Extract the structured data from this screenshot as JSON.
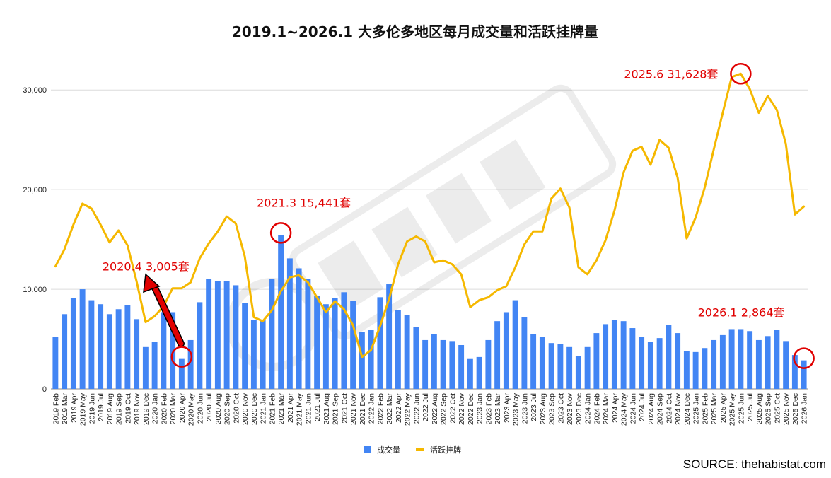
{
  "source": "SOURCE: thehabistat.com",
  "colors": {
    "bars": "#4285f4",
    "line": "#f5b800",
    "annotation": "#e00000",
    "grid": "#dcdcdc"
  },
  "annotations": [
    {
      "text": "2020.4  3,005套",
      "x": "2020 Apr",
      "y": 3005
    },
    {
      "text": "2021.3  15,441套",
      "x": "2021 Mar",
      "y": 15441
    },
    {
      "text": "2025.6  31,628套",
      "x": "2025 Jun",
      "y": 31628
    },
    {
      "text": "2026.1  2,864套",
      "x": "2026 Jan",
      "y": 2864
    }
  ],
  "chart_data": {
    "type": "bar",
    "title": "2019.1~2026.1 大多伦多地区每月成交量和活跃挂牌量",
    "xlabel": "",
    "ylabel": "",
    "ylim": [
      0,
      32500
    ],
    "yticks": [
      0,
      10000,
      20000,
      30000
    ],
    "ytick_labels": [
      "0",
      "10,000",
      "20,000",
      "30,000"
    ],
    "grid": true,
    "legend_position": "bottom",
    "categories": [
      "2019 Feb",
      "2019 Mar",
      "2019 Apr",
      "2019 May",
      "2019 Jun",
      "2019 Jul",
      "2019 Aug",
      "2019 Sep",
      "2019 Oct",
      "2019 Nov",
      "2019 Dec",
      "2020 Jan",
      "2020 Feb",
      "2020 Mar",
      "2020 Apr",
      "2020 May",
      "2020 Jun",
      "2020 Jul",
      "2020 Aug",
      "2020 Sep",
      "2020 Oct",
      "2020 Nov",
      "2020 Dec",
      "2021 Jan",
      "2021 Feb",
      "2021 Mar",
      "2021 Apr",
      "2021 May",
      "2021 Jun",
      "2021 Jul",
      "2021 Aug",
      "2021 Sep",
      "2021 Oct",
      "2021 Nov",
      "2021 Dec",
      "2022 Jan",
      "2022 Feb",
      "2022 Mar",
      "2022 Apr",
      "2022 May",
      "2022 Jun",
      "2022 Jul",
      "2022 Aug",
      "2022 Sep",
      "2022 Oct",
      "2022 Nov",
      "2022 Dec",
      "2023 Jan",
      "2023 Feb",
      "2023 Mar",
      "2023 Apr",
      "2023 May",
      "2023 Jun",
      "2023 Jul",
      "2023 Aug",
      "2023 Sep",
      "2023 Oct",
      "2023 Nov",
      "2023 Dec",
      "2024 Jan",
      "2024 Feb",
      "2024 Mar",
      "2024 Apr",
      "2024 May",
      "2024 Jun",
      "2024 Jul",
      "2024 Aug",
      "2024 Sep",
      "2024 Oct",
      "2024 Nov",
      "2024 Dec",
      "2025 Jan",
      "2025 Feb",
      "2025 Mar",
      "2025 Apr",
      "2025 May",
      "2025 Jun",
      "2025 Jul",
      "2025 Aug",
      "2025 Sep",
      "2025 Oct",
      "2025 Nov",
      "2025 Dec",
      "2026 Jan"
    ],
    "series": [
      {
        "name": "成交量",
        "type": "bar",
        "values": [
          5200,
          7500,
          9100,
          10000,
          8900,
          8500,
          7500,
          8000,
          8400,
          7000,
          4200,
          4700,
          7700,
          7700,
          3005,
          4900,
          8700,
          11000,
          10800,
          10800,
          10400,
          8600,
          6900,
          6900,
          11000,
          15441,
          13100,
          12100,
          11000,
          9300,
          8500,
          9100,
          9700,
          8800,
          5700,
          5900,
          9200,
          10500,
          7900,
          7400,
          6200,
          4900,
          5500,
          4900,
          4800,
          4400,
          3000,
          3200,
          4900,
          6800,
          7700,
          8900,
          7200,
          5500,
          5200,
          4600,
          4500,
          4200,
          3300,
          4200,
          5600,
          6500,
          6900,
          6800,
          6100,
          5200,
          4700,
          5100,
          6400,
          5600,
          3800,
          3700,
          4100,
          4900,
          5400,
          6000,
          6000,
          5800,
          4900,
          5300,
          5900,
          4800,
          3400,
          2864
        ]
      },
      {
        "name": "活跃挂牌",
        "type": "line",
        "values": [
          12300,
          14000,
          16500,
          18600,
          18100,
          16500,
          14700,
          15900,
          14400,
          10800,
          6700,
          7300,
          8300,
          10100,
          10100,
          10700,
          13100,
          14600,
          15800,
          17300,
          16600,
          13300,
          7200,
          6800,
          7900,
          9800,
          11200,
          11400,
          10700,
          9200,
          7700,
          8800,
          8000,
          6400,
          3200,
          3900,
          6300,
          9000,
          12500,
          14800,
          15300,
          14800,
          12700,
          12900,
          12500,
          11500,
          8200,
          8900,
          9200,
          9900,
          10300,
          12200,
          14500,
          15800,
          15800,
          19100,
          20100,
          18200,
          12200,
          11500,
          12900,
          14900,
          17900,
          21700,
          23900,
          24300,
          22500,
          25000,
          24200,
          21200,
          15100,
          17200,
          20200,
          24000,
          27700,
          31300,
          31628,
          30100,
          27700,
          29400,
          28000,
          24600,
          17500,
          18300
        ]
      }
    ]
  }
}
